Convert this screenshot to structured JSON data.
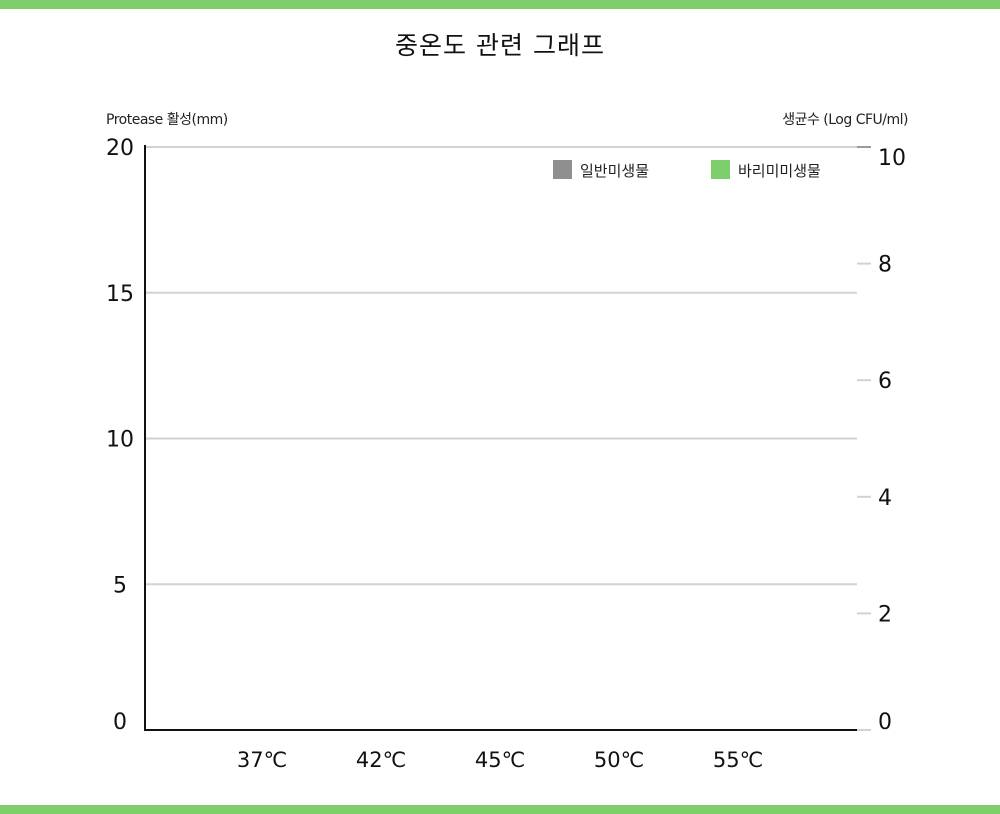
{
  "title": "중온도 관련 그래프",
  "colors": {
    "band": "#7ccf6b",
    "grid": "#d2d2d2",
    "axis": "#111111",
    "general": "#8f8f8f",
    "barley": "#7ccf6b"
  },
  "chart_data": {
    "type": "bar",
    "title": "중온도 관련 그래프",
    "categories": [
      "37℃",
      "42℃",
      "45℃",
      "50℃",
      "55℃"
    ],
    "y_left": {
      "label": "Protease 활성(mm)",
      "range": [
        0,
        20
      ],
      "ticks": [
        "0",
        "5",
        "10",
        "15",
        "20"
      ]
    },
    "y_right": {
      "label": "생균수 (Log CFU/ml)",
      "range": [
        0,
        10
      ],
      "ticks": [
        "0",
        "2",
        "4",
        "6",
        "8",
        "10"
      ]
    },
    "grid": true,
    "legend_position": "top-right",
    "series": [
      {
        "name": "일반미생물",
        "color": "#8f8f8f",
        "values": [
          null,
          null,
          null,
          null,
          null
        ]
      },
      {
        "name": "바리미미생물",
        "color": "#7ccf6b",
        "values": [
          null,
          null,
          null,
          null,
          null
        ]
      }
    ]
  }
}
